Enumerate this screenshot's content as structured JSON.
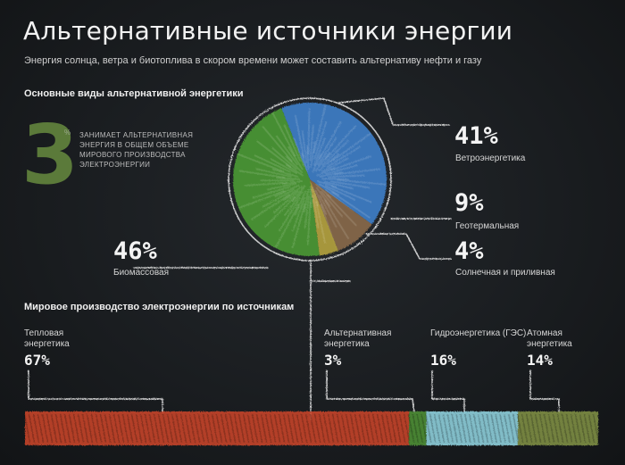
{
  "header": {
    "title": "Альтернативные источники энергии",
    "subtitle": "Энергия солнца, ветра и биотоплива в скором времени может составить альтернативу нефти и газу"
  },
  "alt_section": {
    "heading": "Основные виды альтернативной энергетики",
    "share_value": "3",
    "share_unit": "%",
    "share_note": "ЗАНИМАЕТ АЛЬТЕРНАТИВНАЯ ЭНЕРГИЯ В ОБЩЕМ ОБЪЕМЕ МИРОВОГО ПРОИЗВОДСТВА ЭЛЕКТРОЭНЕРГИИ"
  },
  "world_section": {
    "heading": "Мировое производство электроэнергии по источникам"
  },
  "colors": {
    "wind": "#3f7fc9",
    "biomass": "#4b9a33",
    "geothermal": "#8a6a4a",
    "solar_tidal": "#b5a23d",
    "thermal": "#c8432a",
    "alternative": "#4e8f36",
    "hydro": "#8fd3df",
    "nuclear": "#7f9046"
  },
  "chart_data": [
    {
      "type": "pie",
      "title": "Основные виды альтернативной энергетики",
      "slices": [
        {
          "label": "Ветроэнергетика",
          "value": 41,
          "display": "41%",
          "color": "#3f7fc9"
        },
        {
          "label": "Геотермальная",
          "value": 9,
          "display": "9%",
          "color": "#8a6a4a"
        },
        {
          "label": "Солнечная и приливная",
          "value": 4,
          "display": "4%",
          "color": "#b5a23d"
        },
        {
          "label": "Биомассовая",
          "value": 46,
          "display": "46%",
          "color": "#4b9a33"
        }
      ]
    },
    {
      "type": "bar",
      "title": "Мировое производство электроэнергии по источникам",
      "orientation": "horizontal-stacked",
      "segments": [
        {
          "label": "Тепловая энергетика",
          "value": 67,
          "display": "67%",
          "color": "#c8432a"
        },
        {
          "label": "Альтернативная энергетика",
          "value": 3,
          "display": "3%",
          "color": "#4e8f36"
        },
        {
          "label": "Гидроэнергетика (ГЭС)",
          "value": 16,
          "display": "16%",
          "color": "#8fd3df"
        },
        {
          "label": "Атомная энергетика",
          "value": 14,
          "display": "14%",
          "color": "#7f9046"
        }
      ]
    }
  ]
}
